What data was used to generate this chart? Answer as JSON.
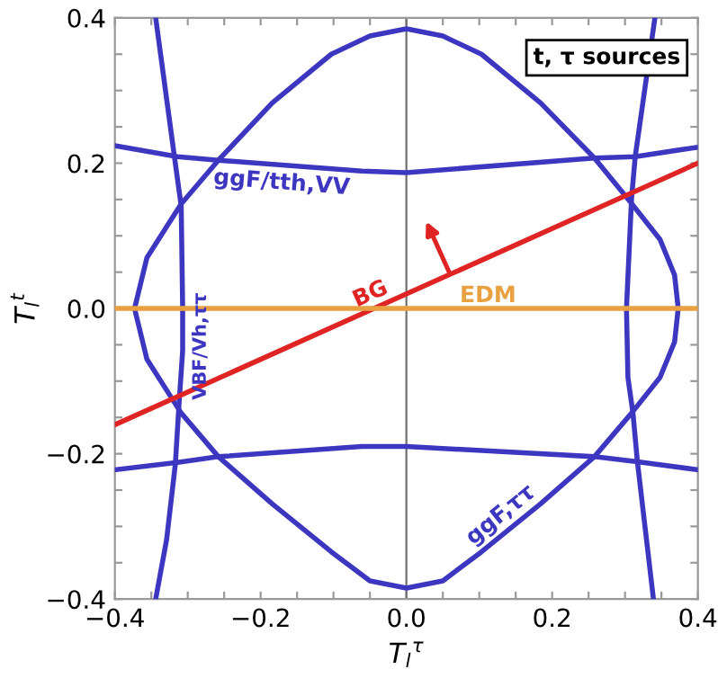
{
  "chart_data": {
    "type": "line",
    "xlabel": "T$_{l}$$^{τ}$",
    "ylabel": "T$_{l}$$^{t}$",
    "xlim": [
      -0.4,
      0.4
    ],
    "ylim": [
      -0.4,
      0.4
    ],
    "xticks": [
      {
        "value": -0.4,
        "label": "−0.4"
      },
      {
        "value": -0.35,
        "label": null
      },
      {
        "value": -0.3,
        "label": null
      },
      {
        "value": -0.25,
        "label": null
      },
      {
        "value": -0.2,
        "label": "−0.2"
      },
      {
        "value": -0.15,
        "label": null
      },
      {
        "value": -0.1,
        "label": null
      },
      {
        "value": -0.05,
        "label": null
      },
      {
        "value": 0.0,
        "label": "0.0"
      },
      {
        "value": 0.05,
        "label": null
      },
      {
        "value": 0.1,
        "label": null
      },
      {
        "value": 0.15,
        "label": null
      },
      {
        "value": 0.2,
        "label": "0.2"
      },
      {
        "value": 0.25,
        "label": null
      },
      {
        "value": 0.3,
        "label": null
      },
      {
        "value": 0.35,
        "label": null
      },
      {
        "value": 0.4,
        "label": "0.4"
      }
    ],
    "yticks": [
      {
        "value": -0.4,
        "label": "−0.4"
      },
      {
        "value": -0.35,
        "label": null
      },
      {
        "value": -0.3,
        "label": null
      },
      {
        "value": -0.25,
        "label": null
      },
      {
        "value": -0.2,
        "label": "−0.2"
      },
      {
        "value": -0.15,
        "label": null
      },
      {
        "value": -0.1,
        "label": null
      },
      {
        "value": -0.05,
        "label": null
      },
      {
        "value": 0.0,
        "label": "0.0"
      },
      {
        "value": 0.05,
        "label": null
      },
      {
        "value": 0.1,
        "label": null
      },
      {
        "value": 0.15,
        "label": null
      },
      {
        "value": 0.2,
        "label": "0.2"
      },
      {
        "value": 0.25,
        "label": null
      },
      {
        "value": 0.3,
        "label": null
      },
      {
        "value": 0.35,
        "label": null
      },
      {
        "value": 0.4,
        "label": "0.4"
      }
    ],
    "grid": false,
    "legend": false,
    "marker": "none",
    "line_style": "solid",
    "series": [
      {
        "name": "ggF,ττ",
        "color": "#3d36c0",
        "x": [
          -0.373,
          -0.356,
          -0.309,
          -0.258,
          -0.184,
          -0.103,
          -0.05,
          0,
          0.05,
          0.103,
          0.184,
          0.258,
          0.307,
          0.348,
          0.368,
          0.373,
          null,
          -0.373,
          -0.356,
          -0.309,
          -0.258,
          -0.184,
          -0.103,
          -0.05,
          0,
          0.05,
          0.103,
          0.184,
          0.258,
          0.309,
          0.348,
          0.368,
          0.373
        ],
        "values": [
          0,
          0.07,
          0.144,
          0.204,
          0.283,
          0.35,
          0.375,
          0.385,
          0.375,
          0.35,
          0.283,
          0.207,
          0.147,
          0.095,
          0.046,
          0,
          null,
          0,
          -0.07,
          -0.144,
          -0.204,
          -0.269,
          -0.335,
          -0.375,
          -0.385,
          -0.375,
          -0.335,
          -0.269,
          -0.204,
          -0.144,
          -0.095,
          -0.046,
          0
        ]
      },
      {
        "name": "ggF/tth,VV",
        "color": "#3d36c0",
        "x": [
          -0.4,
          -0.314,
          -0.258,
          -0.061,
          0,
          0.258,
          0.314,
          0.4,
          null,
          -0.4,
          -0.314,
          -0.258,
          -0.061,
          0,
          0.258,
          0.317,
          0.4
        ],
        "values": [
          0.224,
          0.209,
          0.204,
          0.189,
          0.187,
          0.207,
          0.209,
          0.222,
          null,
          -0.222,
          -0.212,
          -0.204,
          -0.19,
          -0.19,
          -0.204,
          -0.211,
          -0.222
        ]
      },
      {
        "name": "VBF/Vh,ττ",
        "color": "#3d36c0",
        "x": [
          -0.344,
          -0.319,
          -0.309,
          -0.307,
          null,
          -0.307,
          -0.307,
          -0.312,
          -0.317,
          -0.329,
          -0.344,
          null,
          0.302,
          0.309,
          0.314,
          0.341,
          null,
          0.302,
          0.304,
          0.311,
          0.317,
          0.339
        ],
        "values": [
          0.4,
          0.214,
          0.141,
          0,
          null,
          0,
          -0.058,
          -0.132,
          -0.214,
          -0.318,
          -0.4,
          null,
          0,
          0.152,
          0.209,
          0.4,
          null,
          0,
          -0.095,
          -0.145,
          -0.211,
          -0.4
        ]
      },
      {
        "name": "BG",
        "color": "#e02424",
        "x": [
          -0.4,
          0.06,
          0.4
        ],
        "values": [
          -0.16,
          0.047,
          0.2
        ]
      },
      {
        "name": "EDM",
        "color": "#e8a040",
        "x": [
          -0.4,
          0.4
        ],
        "values": [
          0,
          0
        ]
      }
    ],
    "ref_lines": [
      {
        "axis": "x",
        "value": 0,
        "color": "#707070"
      }
    ],
    "annotations": [
      "t, τ sources"
    ]
  }
}
